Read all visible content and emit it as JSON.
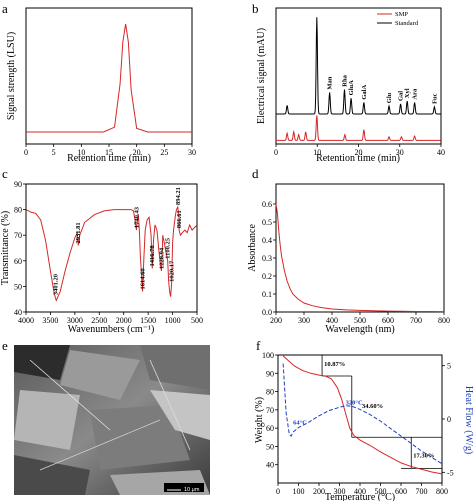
{
  "chart_data": [
    {
      "id": "a",
      "type": "line",
      "panel_label": "a",
      "xlabel": "Retention time (min)",
      "ylabel": "Signal strength (LSU)",
      "xlim": [
        0,
        30
      ],
      "xticks": [
        0,
        5,
        10,
        15,
        20,
        25,
        30
      ],
      "color": "#d62728",
      "series": [
        {
          "x": [
            0,
            14,
            16,
            17,
            17.5,
            18,
            18.5,
            19,
            20,
            22,
            30
          ],
          "y": [
            0.1,
            0.1,
            0.14,
            0.5,
            0.85,
            1.0,
            0.85,
            0.45,
            0.13,
            0.1,
            0.1
          ]
        }
      ]
    },
    {
      "id": "b",
      "type": "line",
      "panel_label": "b",
      "xlabel": "Retention time (min)",
      "ylabel": "Electrical signal (mAU)",
      "xlim": [
        0,
        40
      ],
      "xticks": [
        0,
        10,
        20,
        30,
        40
      ],
      "legend": [
        "SMP",
        "Standard"
      ],
      "legend_placement": "top-right",
      "series": [
        {
          "name": "Standard",
          "color": "#000000",
          "offset": 0.42,
          "peaks": [
            [
              2.7,
              0.12
            ],
            [
              9.9,
              1.35
            ],
            [
              13.0,
              0.3
            ],
            [
              16.6,
              0.34
            ],
            [
              18.2,
              0.22
            ],
            [
              21.3,
              0.16
            ],
            [
              27.4,
              0.11
            ],
            [
              30.2,
              0.14
            ],
            [
              31.8,
              0.18
            ],
            [
              33.6,
              0.16
            ],
            [
              38.4,
              0.1
            ]
          ]
        },
        {
          "name": "SMP",
          "color": "#d62728",
          "offset": 0.05,
          "peaks": [
            [
              2.7,
              0.1
            ],
            [
              4.3,
              0.12
            ],
            [
              5.5,
              0.08
            ],
            [
              7.2,
              0.12
            ],
            [
              9.9,
              0.35
            ],
            [
              16.7,
              0.08
            ],
            [
              21.3,
              0.15
            ],
            [
              27.4,
              0.05
            ],
            [
              30.4,
              0.05
            ],
            [
              33.6,
              0.06
            ]
          ]
        }
      ],
      "annotations": [
        {
          "text": "Man",
          "x": 13.0
        },
        {
          "text": "Rha",
          "x": 16.6
        },
        {
          "text": "GluA",
          "x": 18.2
        },
        {
          "text": "GalA",
          "x": 21.3
        },
        {
          "text": "Glu",
          "x": 27.4
        },
        {
          "text": "Gal",
          "x": 30.2
        },
        {
          "text": "Xyl",
          "x": 31.8
        },
        {
          "text": "Ara",
          "x": 33.6
        },
        {
          "text": "Fuc",
          "x": 38.4
        }
      ]
    },
    {
      "id": "c",
      "type": "line",
      "panel_label": "c",
      "xlabel": "Wavenumbers (cm⁻¹)",
      "ylabel": "Transmittance (%)",
      "xlim": [
        4000,
        500
      ],
      "ylim": [
        40,
        90
      ],
      "xticks": [
        4000,
        3500,
        3000,
        2500,
        2000,
        1500,
        1000,
        500
      ],
      "yticks": [
        40,
        50,
        60,
        70,
        80,
        90
      ],
      "color": "#d62728",
      "series": [
        {
          "x": [
            4000,
            3900,
            3800,
            3700,
            3600,
            3500,
            3420,
            3380,
            3300,
            3200,
            3100,
            3000,
            2950,
            2931,
            2900,
            2800,
            2600,
            2400,
            2200,
            2000,
            1900,
            1850,
            1800,
            1760,
            1740,
            1720,
            1700,
            1680,
            1660,
            1640,
            1614,
            1590,
            1560,
            1520,
            1480,
            1440,
            1416,
            1390,
            1360,
            1320,
            1280,
            1250,
            1228,
            1200,
            1150,
            1100,
            1080,
            1060,
            1040,
            1020,
            1000,
            980,
            960,
            940,
            920,
            894,
            870,
            866,
            840,
            800,
            750,
            700,
            650,
            600,
            550,
            500
          ],
          "y": [
            80,
            79,
            78.5,
            76,
            68,
            56,
            47,
            44.5,
            48,
            56,
            63,
            69,
            71,
            66,
            70,
            75,
            78,
            79.5,
            80,
            80,
            80,
            80,
            79.5,
            75,
            72,
            76,
            78,
            72,
            62,
            56,
            48,
            60,
            72,
            76,
            77,
            70,
            57,
            68,
            74,
            72,
            64,
            59,
            56,
            70,
            65,
            60,
            52,
            48,
            46,
            51,
            67,
            72,
            75,
            78,
            80,
            81,
            77,
            72,
            70,
            71,
            72,
            71,
            74,
            72,
            73,
            74
          ]
        }
      ],
      "annotations": [
        {
          "text": "3401.20",
          "x": 3401
        },
        {
          "text": "2931.81",
          "x": 2931
        },
        {
          "text": "1740.43",
          "x": 1740
        },
        {
          "text": "1614.60",
          "x": 1614
        },
        {
          "text": "1416.78",
          "x": 1416
        },
        {
          "text": "1228.94",
          "x": 1228
        },
        {
          "text": "1100.25",
          "x": 1100
        },
        {
          "text": "1020.17",
          "x": 1020
        },
        {
          "text": "894.21",
          "x": 894
        },
        {
          "text": "866.61",
          "x": 866
        }
      ]
    },
    {
      "id": "d",
      "type": "line",
      "panel_label": "d",
      "xlabel": "Wavelength (nm)",
      "ylabel": "Absorbance",
      "xlim": [
        200,
        800
      ],
      "ylim": [
        0,
        0.6
      ],
      "xticks": [
        200,
        300,
        400,
        500,
        600,
        700,
        800
      ],
      "yticks": [
        0.0,
        0.1,
        0.2,
        0.3,
        0.4,
        0.5,
        0.6
      ],
      "color": "#d62728",
      "series": [
        {
          "x": [
            200,
            205,
            210,
            215,
            220,
            230,
            240,
            250,
            260,
            280,
            300,
            330,
            360,
            400,
            450,
            500,
            550,
            600,
            650,
            700,
            750,
            800
          ],
          "y": [
            0.6,
            0.55,
            0.45,
            0.37,
            0.31,
            0.23,
            0.17,
            0.13,
            0.1,
            0.07,
            0.05,
            0.035,
            0.025,
            0.017,
            0.012,
            0.009,
            0.007,
            0.005,
            0.004,
            0.003,
            0.003,
            0.002
          ]
        }
      ]
    },
    {
      "id": "e",
      "type": "image",
      "panel_label": "e",
      "scale_label": "10 μm"
    },
    {
      "id": "f",
      "type": "line",
      "panel_label": "f",
      "xlabel": "Temperature (°C)",
      "ylabel": "Weight (%)",
      "ylabel_right": "Heat Flow (W/g)",
      "xlim": [
        0,
        800
      ],
      "ylim": [
        30,
        100
      ],
      "ylim_right": [
        -6,
        6
      ],
      "xticks": [
        0,
        100,
        200,
        300,
        400,
        500,
        600,
        700,
        800
      ],
      "yticks": [
        40,
        50,
        60,
        70,
        80,
        90,
        100
      ],
      "yticks_right": [
        -5,
        0,
        5
      ],
      "series": [
        {
          "name": "Weight",
          "color": "#d62728",
          "axis": "left",
          "x": [
            25,
            50,
            80,
            120,
            160,
            200,
            230,
            260,
            290,
            310,
            330,
            350,
            370,
            400,
            450,
            500,
            550,
            600,
            650,
            700,
            750,
            800
          ],
          "y": [
            99.5,
            97,
            94,
            91.5,
            90,
            89,
            88.5,
            87,
            82,
            76,
            68,
            60,
            56,
            53.5,
            50.5,
            47,
            44,
            41,
            39,
            37.5,
            36,
            35
          ]
        },
        {
          "name": "Heat Flow",
          "color": "#1f3fbf",
          "axis": "right",
          "dashed": true,
          "x": [
            25,
            40,
            55,
            64,
            75,
            100,
            150,
            200,
            250,
            300,
            330,
            360,
            400,
            450,
            500,
            550,
            600,
            650,
            700,
            750,
            800
          ],
          "y": [
            5.2,
            0.5,
            -1.4,
            -1.6,
            -1.2,
            -0.8,
            -0.3,
            0.3,
            0.8,
            1.1,
            1.25,
            1.2,
            0.9,
            0.4,
            -0.2,
            -0.9,
            -1.6,
            -2.3,
            -3.0,
            -3.6,
            -4.2
          ]
        }
      ],
      "annotations": [
        {
          "text": "10.87%",
          "x": 215,
          "y": 94
        },
        {
          "text": "34.60%",
          "x": 400,
          "y": 71
        },
        {
          "text": "17.30%",
          "x": 650,
          "y": 44
        },
        {
          "text": "64°C",
          "x": 64,
          "y": 62,
          "color": "#1f3fbf"
        },
        {
          "text": "320°C",
          "x": 320,
          "y": 73,
          "color": "#1f3fbf"
        }
      ],
      "step_levels": [
        {
          "x0": 25,
          "x1": 215,
          "y": 100
        },
        {
          "x0": 215,
          "x1": 360,
          "y": 88.5
        },
        {
          "x0": 360,
          "x1": 800,
          "y": 55
        },
        {
          "x0": 600,
          "x1": 800,
          "y": 38
        }
      ]
    }
  ]
}
